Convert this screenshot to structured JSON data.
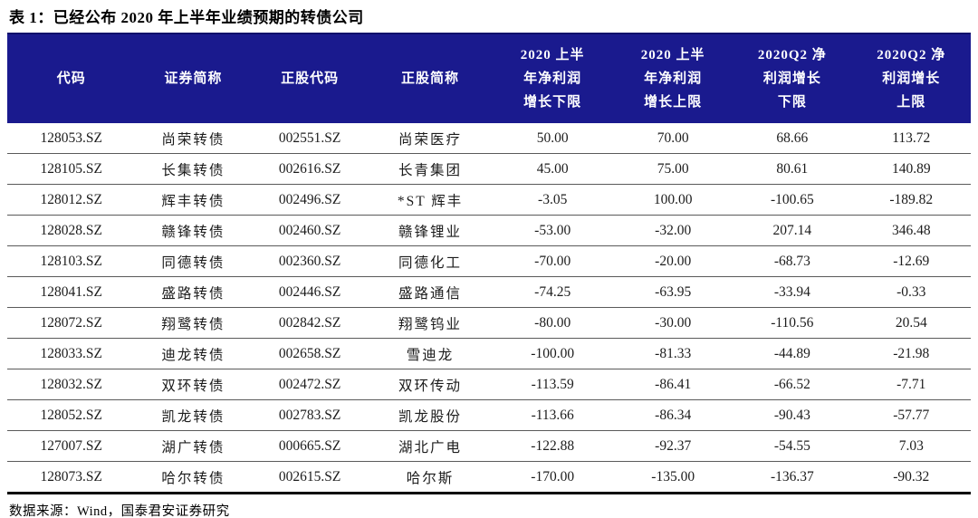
{
  "title": "表 1：已经公布 2020 年上半年业绩预期的转债公司",
  "source": "数据来源：Wind，国泰君安证券研究",
  "colors": {
    "header_bg": "#1a1a8e",
    "header_text": "#ffffff",
    "row_line": "#5a5a5a",
    "table_border": "#000000"
  },
  "chart_data": {
    "type": "table",
    "headers": [
      {
        "key": "cell-code",
        "lines": [
          "代码"
        ]
      },
      {
        "key": "cell-bond-name",
        "lines": [
          "证券简称"
        ]
      },
      {
        "key": "cell-stock-code",
        "lines": [
          "正股代码"
        ]
      },
      {
        "key": "cell-stock-name",
        "lines": [
          "正股简称"
        ]
      },
      {
        "key": "cell-h1-lower",
        "lines": [
          "2020 上半",
          "年净利润",
          "增长下限"
        ]
      },
      {
        "key": "cell-h1-upper",
        "lines": [
          "2020 上半",
          "年净利润",
          "增长上限"
        ]
      },
      {
        "key": "cell-q2-lower",
        "lines": [
          "2020Q2 净",
          "利润增长",
          "下限"
        ]
      },
      {
        "key": "cell-q2-upper",
        "lines": [
          "2020Q2 净",
          "利润增长",
          "上限"
        ]
      }
    ],
    "rows": [
      [
        "128053.SZ",
        "尚荣转债",
        "002551.SZ",
        "尚荣医疗",
        "50.00",
        "70.00",
        "68.66",
        "113.72"
      ],
      [
        "128105.SZ",
        "长集转债",
        "002616.SZ",
        "长青集团",
        "45.00",
        "75.00",
        "80.61",
        "140.89"
      ],
      [
        "128012.SZ",
        "辉丰转债",
        "002496.SZ",
        "*ST 辉丰",
        "-3.05",
        "100.00",
        "-100.65",
        "-189.82"
      ],
      [
        "128028.SZ",
        "赣锋转债",
        "002460.SZ",
        "赣锋锂业",
        "-53.00",
        "-32.00",
        "207.14",
        "346.48"
      ],
      [
        "128103.SZ",
        "同德转债",
        "002360.SZ",
        "同德化工",
        "-70.00",
        "-20.00",
        "-68.73",
        "-12.69"
      ],
      [
        "128041.SZ",
        "盛路转债",
        "002446.SZ",
        "盛路通信",
        "-74.25",
        "-63.95",
        "-33.94",
        "-0.33"
      ],
      [
        "128072.SZ",
        "翔鹭转债",
        "002842.SZ",
        "翔鹭钨业",
        "-80.00",
        "-30.00",
        "-110.56",
        "20.54"
      ],
      [
        "128033.SZ",
        "迪龙转债",
        "002658.SZ",
        "雪迪龙",
        "-100.00",
        "-81.33",
        "-44.89",
        "-21.98"
      ],
      [
        "128032.SZ",
        "双环转债",
        "002472.SZ",
        "双环传动",
        "-113.59",
        "-86.41",
        "-66.52",
        "-7.71"
      ],
      [
        "128052.SZ",
        "凯龙转债",
        "002783.SZ",
        "凯龙股份",
        "-113.66",
        "-86.34",
        "-90.43",
        "-57.77"
      ],
      [
        "127007.SZ",
        "湖广转债",
        "000665.SZ",
        "湖北广电",
        "-122.88",
        "-92.37",
        "-54.55",
        "7.03"
      ],
      [
        "128073.SZ",
        "哈尔转债",
        "002615.SZ",
        "哈尔斯",
        "-170.00",
        "-135.00",
        "-136.37",
        "-90.32"
      ]
    ]
  }
}
